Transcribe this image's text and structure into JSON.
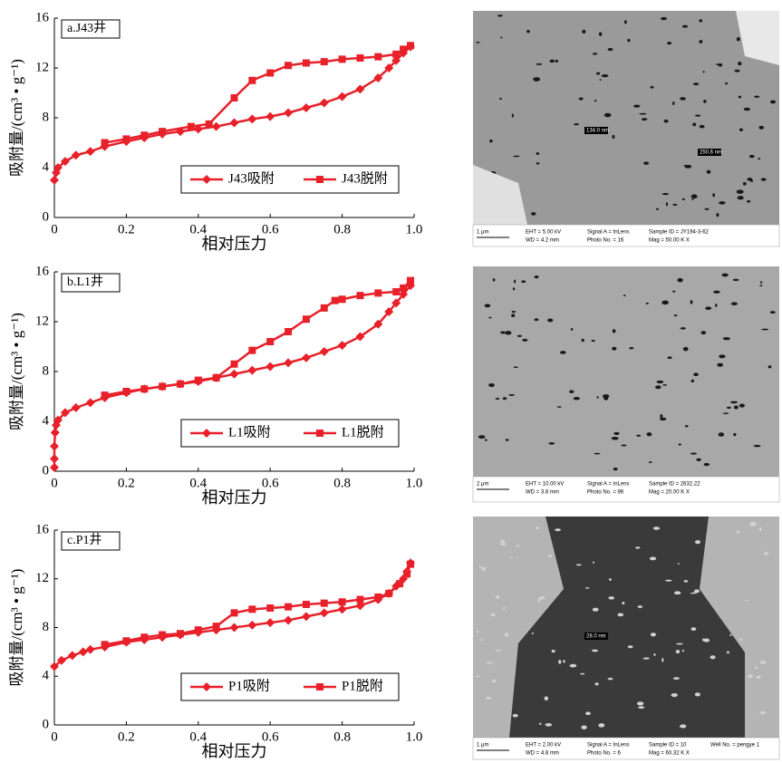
{
  "chart_data": [
    {
      "type": "line",
      "label": "a.J43井",
      "xlabel": "相对压力",
      "ylabel": "吸附量/(cm³ • g⁻¹)",
      "xlim": [
        0,
        1
      ],
      "ylim": [
        0,
        16
      ],
      "xticks": [
        0,
        0.2,
        0.4,
        0.6,
        0.8,
        {
          "value": 1,
          "label": "1.0"
        }
      ],
      "yticks": [
        0,
        4,
        8,
        12,
        16
      ],
      "legend": "lower right",
      "grid": false,
      "series": [
        {
          "name": "J43吸附",
          "color": "#e8202a",
          "marker": "diamond",
          "x": [
            0.0,
            0.005,
            0.01,
            0.03,
            0.06,
            0.1,
            0.14,
            0.2,
            0.25,
            0.3,
            0.35,
            0.4,
            0.45,
            0.5,
            0.55,
            0.6,
            0.65,
            0.7,
            0.75,
            0.8,
            0.85,
            0.9,
            0.93,
            0.95,
            0.97,
            0.99
          ],
          "values": [
            3.0,
            3.6,
            4.0,
            4.5,
            5.0,
            5.3,
            5.7,
            6.1,
            6.4,
            6.7,
            6.9,
            7.1,
            7.3,
            7.6,
            7.9,
            8.1,
            8.4,
            8.8,
            9.2,
            9.7,
            10.3,
            11.2,
            12.0,
            12.6,
            13.2,
            13.7
          ]
        },
        {
          "name": "J43脱附",
          "color": "#e8202a",
          "marker": "square",
          "x": [
            0.99,
            0.97,
            0.95,
            0.9,
            0.85,
            0.8,
            0.75,
            0.7,
            0.65,
            0.6,
            0.55,
            0.5,
            0.43,
            0.38,
            0.3,
            0.25,
            0.2,
            0.14
          ],
          "values": [
            13.8,
            13.5,
            13.1,
            12.9,
            12.8,
            12.7,
            12.5,
            12.4,
            12.2,
            11.6,
            11.0,
            9.6,
            7.5,
            7.3,
            6.9,
            6.6,
            6.3,
            6.0
          ]
        }
      ]
    },
    {
      "type": "line",
      "label": "b.L1井",
      "xlabel": "相对压力",
      "ylabel": "吸附量/(cm³ • g⁻¹)",
      "xlim": [
        0,
        1
      ],
      "ylim": [
        0,
        16
      ],
      "xticks": [
        0,
        0.2,
        0.4,
        0.6,
        0.8,
        {
          "value": 1,
          "label": "1.0"
        }
      ],
      "yticks": [
        0,
        4,
        8,
        12,
        16
      ],
      "legend": "lower right",
      "grid": false,
      "series": [
        {
          "name": "L1吸附",
          "color": "#e8202a",
          "marker": "diamond",
          "x": [
            0.0,
            0.0,
            0.0,
            0.002,
            0.005,
            0.01,
            0.03,
            0.06,
            0.1,
            0.14,
            0.2,
            0.25,
            0.3,
            0.35,
            0.4,
            0.45,
            0.5,
            0.55,
            0.6,
            0.65,
            0.7,
            0.75,
            0.8,
            0.85,
            0.9,
            0.93,
            0.95,
            0.97,
            0.99
          ],
          "values": [
            0.3,
            1.0,
            2.0,
            3.1,
            3.7,
            4.1,
            4.7,
            5.1,
            5.5,
            5.9,
            6.3,
            6.6,
            6.8,
            7.0,
            7.2,
            7.5,
            7.8,
            8.1,
            8.4,
            8.7,
            9.1,
            9.6,
            10.1,
            10.8,
            11.8,
            12.8,
            13.5,
            14.2,
            14.9
          ]
        },
        {
          "name": "L1脱附",
          "color": "#e8202a",
          "marker": "square",
          "x": [
            0.99,
            0.97,
            0.95,
            0.9,
            0.85,
            0.8,
            0.78,
            0.75,
            0.7,
            0.65,
            0.6,
            0.55,
            0.5,
            0.45,
            0.4,
            0.35,
            0.3,
            0.25,
            0.2,
            0.14
          ],
          "values": [
            15.3,
            14.7,
            14.4,
            14.3,
            14.1,
            13.8,
            13.7,
            13.1,
            12.2,
            11.2,
            10.4,
            9.7,
            8.6,
            7.5,
            7.3,
            7.0,
            6.8,
            6.6,
            6.4,
            6.1
          ]
        }
      ]
    },
    {
      "type": "line",
      "label": "c.P1井",
      "xlabel": "相对压力",
      "ylabel": "吸附量/(cm³ • g⁻¹)",
      "xlim": [
        0,
        1
      ],
      "ylim": [
        0,
        16
      ],
      "xticks": [
        0,
        0.2,
        0.4,
        0.6,
        0.8,
        {
          "value": 1,
          "label": "1.0"
        }
      ],
      "yticks": [
        0,
        4,
        8,
        12,
        16
      ],
      "legend": "lower right",
      "grid": false,
      "series": [
        {
          "name": "P1吸附",
          "color": "#e8202a",
          "marker": "diamond",
          "x": [
            0.0,
            0.02,
            0.05,
            0.08,
            0.1,
            0.14,
            0.2,
            0.25,
            0.3,
            0.35,
            0.4,
            0.45,
            0.5,
            0.55,
            0.6,
            0.65,
            0.7,
            0.75,
            0.8,
            0.85,
            0.9,
            0.93,
            0.95,
            0.97,
            0.98,
            0.99
          ],
          "values": [
            4.8,
            5.3,
            5.7,
            6.0,
            6.2,
            6.4,
            6.8,
            7.0,
            7.2,
            7.4,
            7.6,
            7.8,
            8.0,
            8.2,
            8.4,
            8.6,
            8.9,
            9.2,
            9.5,
            9.8,
            10.3,
            10.8,
            11.4,
            12.0,
            12.6,
            13.3
          ]
        },
        {
          "name": "P1脱附",
          "color": "#e8202a",
          "marker": "square",
          "x": [
            0.99,
            0.98,
            0.96,
            0.93,
            0.9,
            0.85,
            0.8,
            0.75,
            0.7,
            0.65,
            0.6,
            0.55,
            0.5,
            0.45,
            0.4,
            0.35,
            0.3,
            0.25,
            0.2,
            0.14
          ],
          "values": [
            13.2,
            12.4,
            11.6,
            10.8,
            10.5,
            10.3,
            10.1,
            10.0,
            9.9,
            9.7,
            9.6,
            9.5,
            9.2,
            8.1,
            7.8,
            7.5,
            7.4,
            7.2,
            6.9,
            6.6
          ]
        }
      ]
    }
  ],
  "images": [
    {
      "scale": "1 μm",
      "marks": [
        "134.0 nm",
        "250.6 nm"
      ],
      "info": [
        [
          "EHT = 5.00 kV",
          "Signal A = InLens",
          "Sample ID = JY194-3-62"
        ],
        [
          "WD = 4.2 mm",
          "Photo No. = 16",
          "Mag = 50.00 K X"
        ]
      ]
    },
    {
      "scale": "2 μm",
      "marks": [],
      "info": [
        [
          "EHT = 10.00 kV",
          "Signal A = InLens",
          "Sample ID = 2632.22"
        ],
        [
          "WD = 3.8 mm",
          "Photo No. = 96",
          "Mag = 20.00 K X"
        ]
      ]
    },
    {
      "scale": "1 μm",
      "marks": [
        "28.0 nm"
      ],
      "info": [
        [
          "EHT = 2.00 kV",
          "Signal A = InLens",
          "Sample ID = 10",
          "Well No. = pengye 1"
        ],
        [
          "WD = 4.8 mm",
          "Photo No. = 6",
          "Mag = 60.32 K X"
        ]
      ]
    }
  ]
}
